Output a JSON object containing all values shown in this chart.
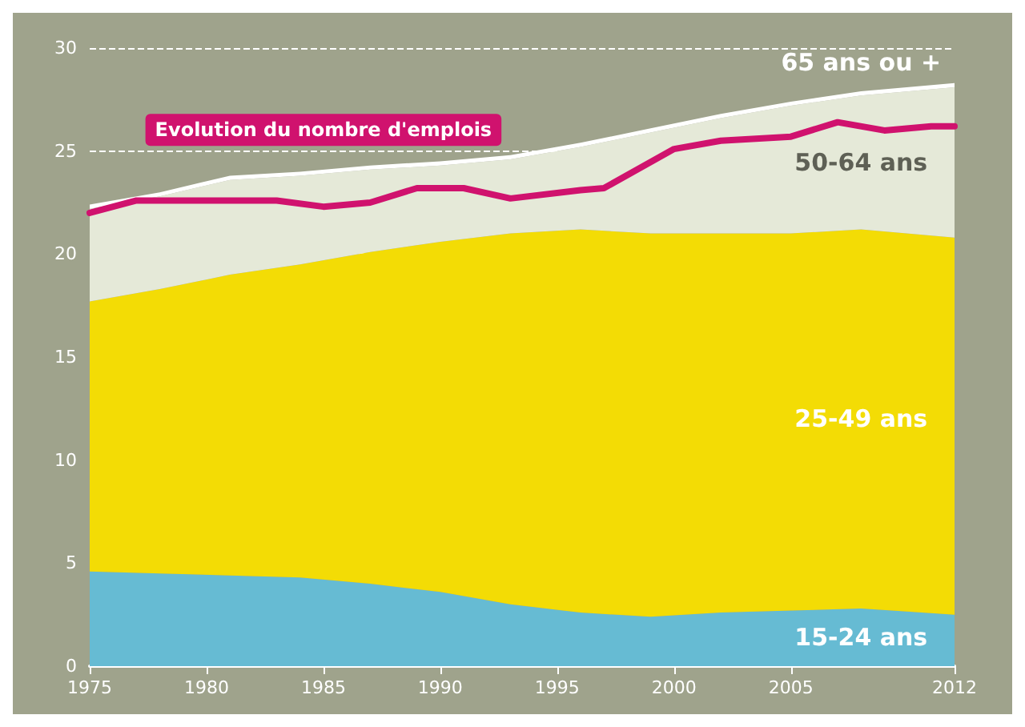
{
  "chart_data": {
    "type": "area",
    "stacked": true,
    "legend": false,
    "grid": "y",
    "line_style": "solid",
    "x": [
      1975,
      1978,
      1981,
      1984,
      1987,
      1990,
      1993,
      1996,
      1999,
      2002,
      2005,
      2008,
      2012
    ],
    "xlim": [
      1975,
      2012
    ],
    "xticks": [
      1975,
      1980,
      1985,
      1990,
      1995,
      2000,
      2005,
      2012
    ],
    "ylim": [
      0,
      30
    ],
    "yticks": [
      0,
      5,
      10,
      15,
      20,
      25,
      30
    ],
    "series": [
      {
        "name": "15-24 ans",
        "color": "#66bbd3",
        "values": [
          4.6,
          4.5,
          4.4,
          4.3,
          4.0,
          3.6,
          3.0,
          2.6,
          2.4,
          2.6,
          2.7,
          2.8,
          2.5
        ]
      },
      {
        "name": "25-49 ans",
        "color": "#f3dc05",
        "values": [
          13.1,
          13.8,
          14.6,
          15.2,
          16.1,
          17.0,
          18.0,
          18.6,
          18.6,
          18.4,
          18.3,
          18.4,
          18.3
        ]
      },
      {
        "name": "50-64 ans",
        "color": "#e5e9d8",
        "values": [
          4.5,
          4.5,
          4.6,
          4.3,
          4.0,
          3.7,
          3.6,
          4.0,
          4.9,
          5.6,
          6.2,
          6.5,
          7.3
        ]
      },
      {
        "name": "65 ans ou +",
        "color": "#ffffff",
        "values": [
          0.2,
          0.2,
          0.2,
          0.2,
          0.2,
          0.2,
          0.2,
          0.2,
          0.2,
          0.2,
          0.2,
          0.2,
          0.2
        ]
      },
      {
        "name": "Evolution du nombre d'emplois",
        "type": "line",
        "color": "#d0126e",
        "x": [
          1975,
          1977,
          1980,
          1983,
          1985,
          1987,
          1989,
          1991,
          1993,
          1996,
          1997,
          2000,
          2002,
          2005,
          2007,
          2009,
          2011,
          2012
        ],
        "values": [
          22.0,
          22.6,
          22.6,
          22.6,
          22.3,
          22.5,
          23.2,
          23.2,
          22.7,
          23.1,
          23.2,
          25.1,
          25.5,
          25.7,
          26.4,
          26.0,
          26.2,
          26.2
        ]
      }
    ]
  }
}
